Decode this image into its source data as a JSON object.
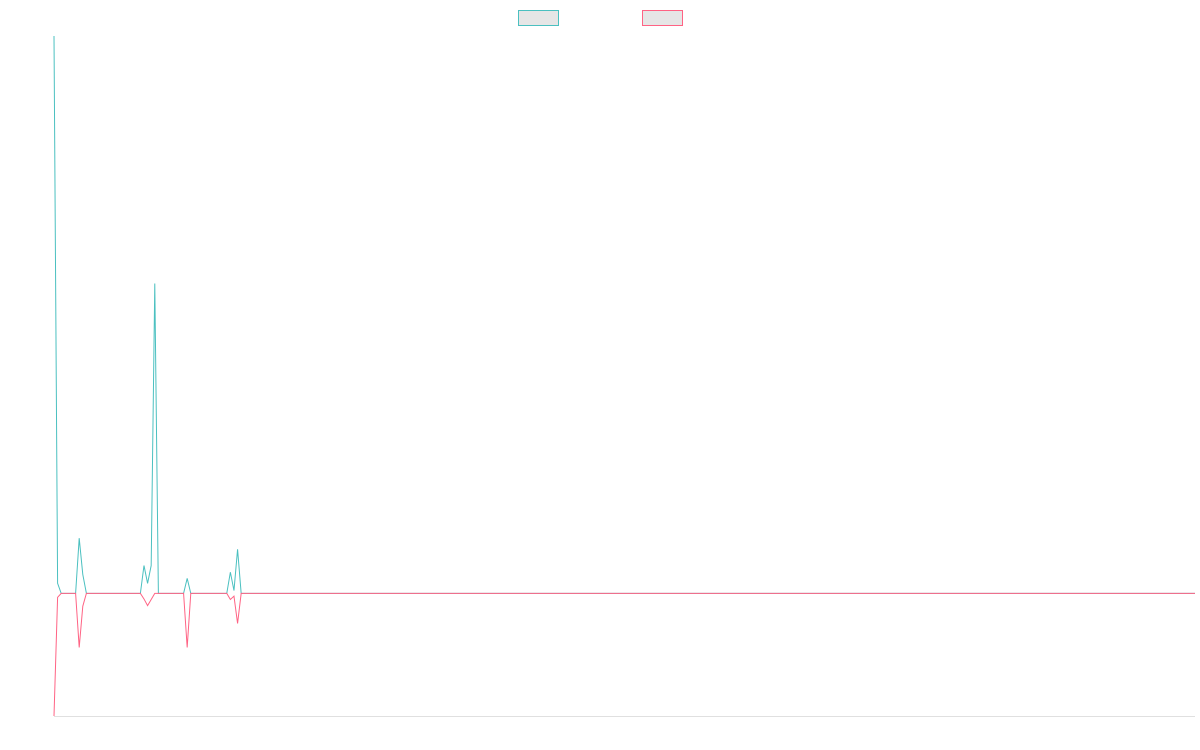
{
  "chart_data": {
    "type": "line",
    "x": [
      0,
      1,
      2,
      6,
      7,
      8,
      9,
      24,
      25,
      26,
      27,
      28,
      29,
      36,
      37,
      38,
      48,
      49,
      50,
      51,
      52,
      317
    ],
    "series": [
      {
        "color": "#4bc0c0",
        "values": [
          100,
          1.8,
          0,
          0,
          9.9,
          3.4,
          0,
          0,
          5,
          1.8,
          5,
          55.6,
          0,
          0,
          2.7,
          0,
          0,
          3.8,
          0.5,
          7.9,
          0,
          0
        ]
      },
      {
        "color": "#ff6384",
        "values": [
          -22,
          -0.7,
          0,
          0,
          -9.7,
          -2.3,
          0,
          0,
          -1,
          -2.2,
          -1.1,
          0,
          0,
          0,
          -9.7,
          0,
          0,
          -1.1,
          -0.5,
          -5.4,
          0,
          0
        ]
      }
    ],
    "xlim": [
      0,
      317
    ],
    "ylim": [
      -22,
      100
    ],
    "legend": "top"
  }
}
